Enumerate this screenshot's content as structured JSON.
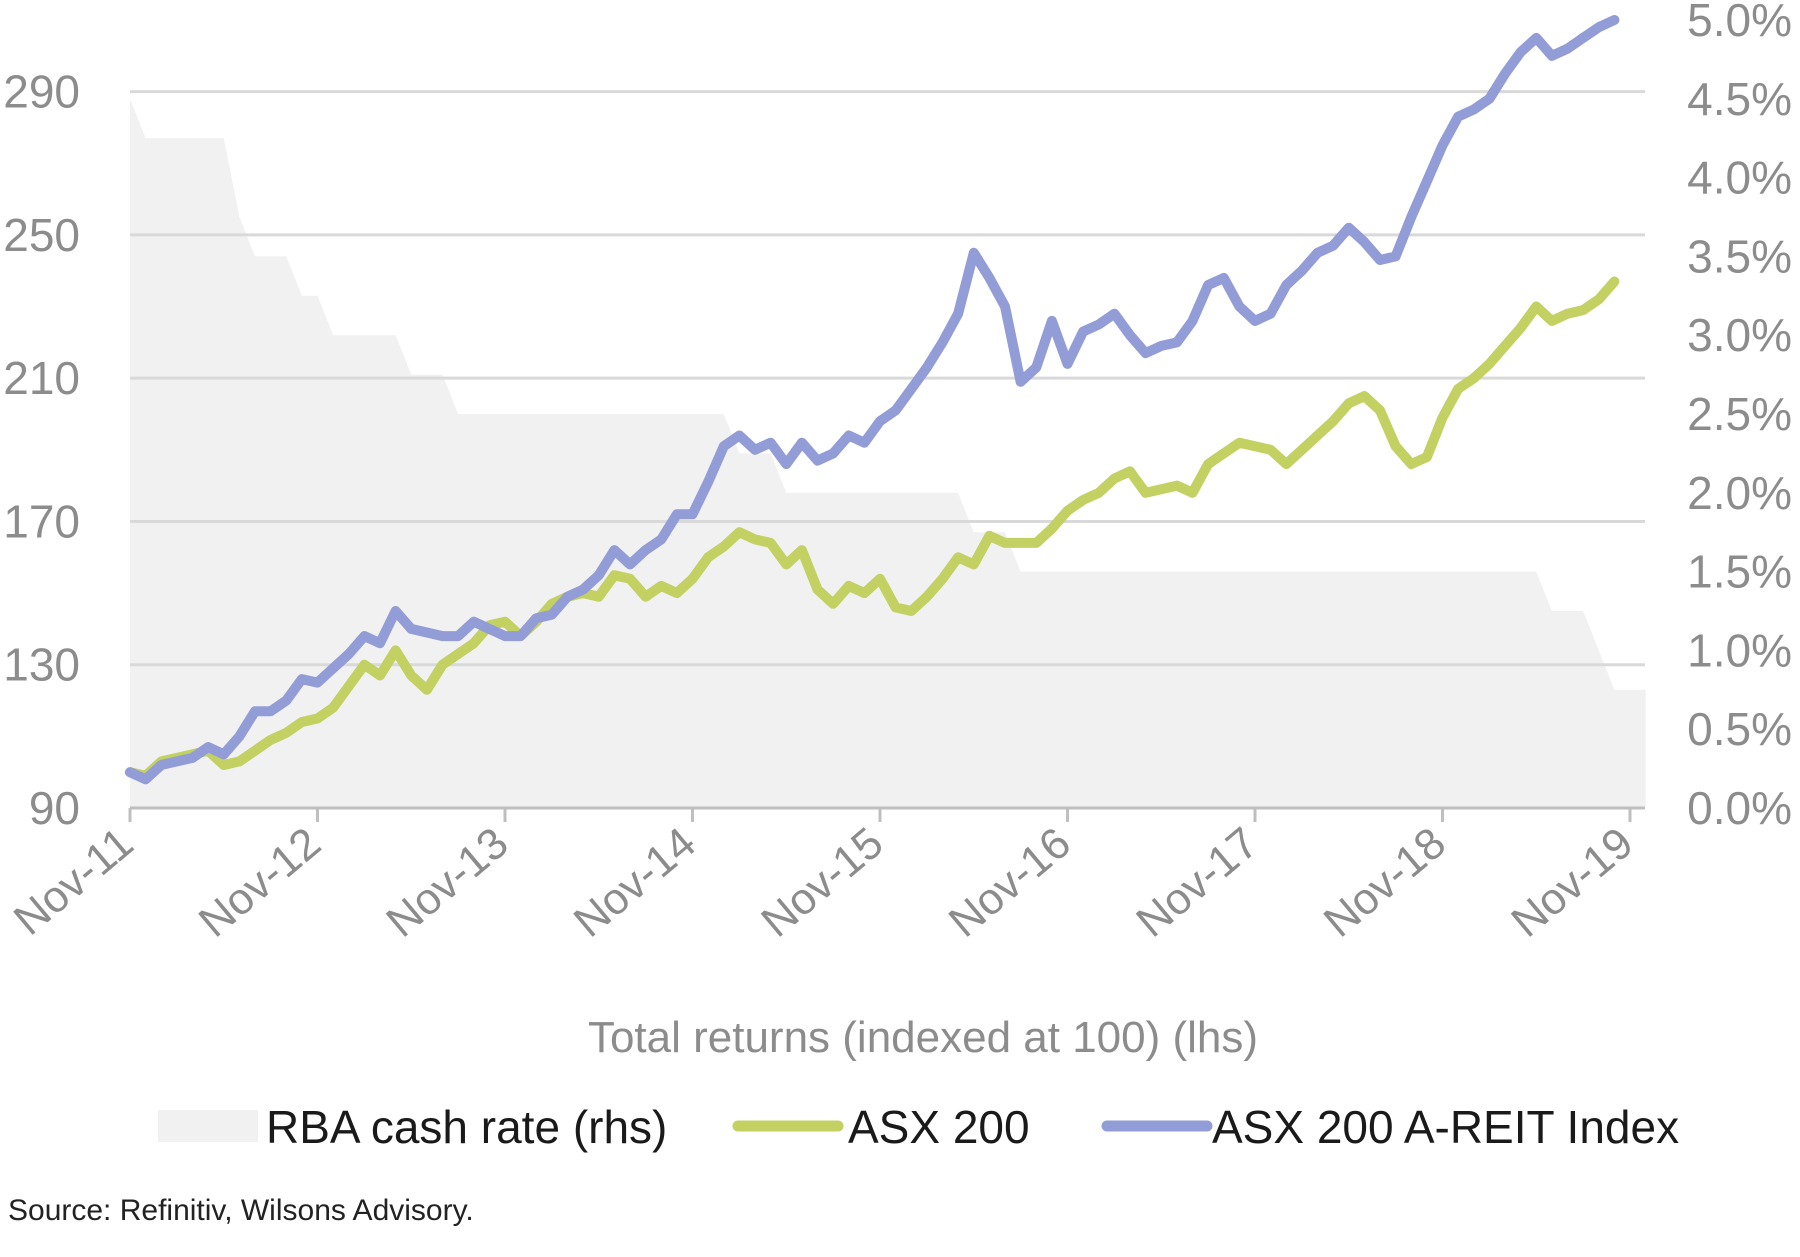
{
  "chart_data": {
    "type": "line",
    "xlabel": "Total returns (indexed at 100) (lhs)",
    "x_ticks": [
      "Nov-11",
      "Nov-12",
      "Nov-13",
      "Nov-14",
      "Nov-15",
      "Nov-16",
      "Nov-17",
      "Nov-18",
      "Nov-19"
    ],
    "y_left": {
      "lim": [
        90,
        310
      ],
      "ticks": [
        "90",
        "130",
        "170",
        "210",
        "250",
        "290"
      ]
    },
    "y_right": {
      "lim": [
        0.0,
        5.0
      ],
      "ticks": [
        "0.0%",
        "0.5%",
        "1.0%",
        "1.5%",
        "2.0%",
        "2.5%",
        "3.0%",
        "3.5%",
        "4.0%",
        "4.5%",
        "5.0%"
      ]
    },
    "grid": true,
    "legend_position": "bottom",
    "colors": {
      "cash_rate": "#f1f1f1",
      "asx200": "#c3d062",
      "areit": "#929cd6",
      "grid": "#d9d9d9",
      "axis": "#bfbfbf"
    },
    "series": [
      {
        "name": "RBA cash rate (rhs)",
        "type": "area",
        "axis": "right",
        "points": [
          [
            "2011-11",
            4.5
          ],
          [
            "2011-12",
            4.25
          ],
          [
            "2012-05",
            4.25
          ],
          [
            "2012-06",
            3.75
          ],
          [
            "2012-07",
            3.5
          ],
          [
            "2012-09",
            3.5
          ],
          [
            "2012-10",
            3.25
          ],
          [
            "2012-11",
            3.25
          ],
          [
            "2012-12",
            3.0
          ],
          [
            "2013-04",
            3.0
          ],
          [
            "2013-05",
            2.75
          ],
          [
            "2013-07",
            2.75
          ],
          [
            "2013-08",
            2.5
          ],
          [
            "2015-01",
            2.5
          ],
          [
            "2015-02",
            2.25
          ],
          [
            "2015-04",
            2.25
          ],
          [
            "2015-05",
            2.0
          ],
          [
            "2016-04",
            2.0
          ],
          [
            "2016-05",
            1.75
          ],
          [
            "2016-07",
            1.75
          ],
          [
            "2016-08",
            1.5
          ],
          [
            "2019-05",
            1.5
          ],
          [
            "2019-06",
            1.25
          ],
          [
            "2019-08",
            1.25
          ],
          [
            "2019-09",
            1.0
          ],
          [
            "2019-10",
            0.75
          ],
          [
            "2019-12",
            0.75
          ]
        ]
      },
      {
        "name": "ASX 200",
        "type": "line",
        "axis": "left",
        "points": [
          [
            "2011-11",
            100
          ],
          [
            "2011-12",
            99
          ],
          [
            "2012-01",
            103
          ],
          [
            "2012-02",
            104
          ],
          [
            "2012-03",
            105
          ],
          [
            "2012-04",
            106
          ],
          [
            "2012-05",
            102
          ],
          [
            "2012-06",
            103
          ],
          [
            "2012-07",
            106
          ],
          [
            "2012-08",
            109
          ],
          [
            "2012-09",
            111
          ],
          [
            "2012-10",
            114
          ],
          [
            "2012-11",
            115
          ],
          [
            "2012-12",
            118
          ],
          [
            "2013-01",
            124
          ],
          [
            "2013-02",
            130
          ],
          [
            "2013-03",
            127
          ],
          [
            "2013-04",
            134
          ],
          [
            "2013-05",
            127
          ],
          [
            "2013-06",
            123
          ],
          [
            "2013-07",
            130
          ],
          [
            "2013-08",
            133
          ],
          [
            "2013-09",
            136
          ],
          [
            "2013-10",
            141
          ],
          [
            "2013-11",
            142
          ],
          [
            "2013-12",
            138
          ],
          [
            "2014-01",
            142
          ],
          [
            "2014-02",
            147
          ],
          [
            "2014-03",
            149
          ],
          [
            "2014-04",
            150
          ],
          [
            "2014-05",
            149
          ],
          [
            "2014-06",
            155
          ],
          [
            "2014-07",
            154
          ],
          [
            "2014-08",
            149
          ],
          [
            "2014-09",
            152
          ],
          [
            "2014-10",
            150
          ],
          [
            "2014-11",
            154
          ],
          [
            "2014-12",
            160
          ],
          [
            "2015-01",
            163
          ],
          [
            "2015-02",
            167
          ],
          [
            "2015-03",
            165
          ],
          [
            "2015-04",
            164
          ],
          [
            "2015-05",
            158
          ],
          [
            "2015-06",
            162
          ],
          [
            "2015-07",
            151
          ],
          [
            "2015-08",
            147
          ],
          [
            "2015-09",
            152
          ],
          [
            "2015-10",
            150
          ],
          [
            "2015-11",
            154
          ],
          [
            "2015-12",
            146
          ],
          [
            "2016-01",
            145
          ],
          [
            "2016-02",
            149
          ],
          [
            "2016-03",
            154
          ],
          [
            "2016-04",
            160
          ],
          [
            "2016-05",
            158
          ],
          [
            "2016-06",
            166
          ],
          [
            "2016-07",
            164
          ],
          [
            "2016-08",
            164
          ],
          [
            "2016-09",
            164
          ],
          [
            "2016-10",
            168
          ],
          [
            "2016-11",
            173
          ],
          [
            "2016-12",
            176
          ],
          [
            "2017-01",
            178
          ],
          [
            "2017-02",
            182
          ],
          [
            "2017-03",
            184
          ],
          [
            "2017-04",
            178
          ],
          [
            "2017-05",
            179
          ],
          [
            "2017-06",
            180
          ],
          [
            "2017-07",
            178
          ],
          [
            "2017-08",
            186
          ],
          [
            "2017-09",
            189
          ],
          [
            "2017-10",
            192
          ],
          [
            "2017-11",
            191
          ],
          [
            "2017-12",
            190
          ],
          [
            "2018-01",
            186
          ],
          [
            "2018-02",
            190
          ],
          [
            "2018-03",
            194
          ],
          [
            "2018-04",
            198
          ],
          [
            "2018-05",
            203
          ],
          [
            "2018-06",
            205
          ],
          [
            "2018-07",
            201
          ],
          [
            "2018-08",
            191
          ],
          [
            "2018-09",
            186
          ],
          [
            "2018-10",
            188
          ],
          [
            "2018-11",
            199
          ],
          [
            "2018-12",
            207
          ],
          [
            "2019-01",
            210
          ],
          [
            "2019-02",
            214
          ],
          [
            "2019-03",
            219
          ],
          [
            "2019-04",
            224
          ],
          [
            "2019-05",
            230
          ],
          [
            "2019-06",
            226
          ],
          [
            "2019-07",
            228
          ],
          [
            "2019-08",
            229
          ],
          [
            "2019-09",
            232
          ],
          [
            "2019-10",
            237
          ]
        ]
      },
      {
        "name": "ASX 200 A-REIT Index",
        "type": "line",
        "axis": "left",
        "points": [
          [
            "2011-11",
            100
          ],
          [
            "2011-12",
            98
          ],
          [
            "2012-01",
            102
          ],
          [
            "2012-02",
            103
          ],
          [
            "2012-03",
            104
          ],
          [
            "2012-04",
            107
          ],
          [
            "2012-05",
            105
          ],
          [
            "2012-06",
            110
          ],
          [
            "2012-07",
            117
          ],
          [
            "2012-08",
            117
          ],
          [
            "2012-09",
            120
          ],
          [
            "2012-10",
            126
          ],
          [
            "2012-11",
            125
          ],
          [
            "2012-12",
            129
          ],
          [
            "2013-01",
            133
          ],
          [
            "2013-02",
            138
          ],
          [
            "2013-03",
            136
          ],
          [
            "2013-04",
            145
          ],
          [
            "2013-05",
            140
          ],
          [
            "2013-06",
            139
          ],
          [
            "2013-07",
            138
          ],
          [
            "2013-08",
            138
          ],
          [
            "2013-09",
            142
          ],
          [
            "2013-10",
            140
          ],
          [
            "2013-11",
            138
          ],
          [
            "2013-12",
            138
          ],
          [
            "2014-01",
            143
          ],
          [
            "2014-02",
            144
          ],
          [
            "2014-03",
            149
          ],
          [
            "2014-04",
            151
          ],
          [
            "2014-05",
            155
          ],
          [
            "2014-06",
            162
          ],
          [
            "2014-07",
            158
          ],
          [
            "2014-08",
            162
          ],
          [
            "2014-09",
            165
          ],
          [
            "2014-10",
            172
          ],
          [
            "2014-11",
            172
          ],
          [
            "2014-12",
            181
          ],
          [
            "2015-01",
            191
          ],
          [
            "2015-02",
            194
          ],
          [
            "2015-03",
            190
          ],
          [
            "2015-04",
            192
          ],
          [
            "2015-05",
            186
          ],
          [
            "2015-06",
            192
          ],
          [
            "2015-07",
            187
          ],
          [
            "2015-08",
            189
          ],
          [
            "2015-09",
            194
          ],
          [
            "2015-10",
            192
          ],
          [
            "2015-11",
            198
          ],
          [
            "2015-12",
            201
          ],
          [
            "2016-01",
            207
          ],
          [
            "2016-02",
            213
          ],
          [
            "2016-03",
            220
          ],
          [
            "2016-04",
            228
          ],
          [
            "2016-05",
            245
          ],
          [
            "2016-06",
            238
          ],
          [
            "2016-07",
            230
          ],
          [
            "2016-08",
            209
          ],
          [
            "2016-09",
            213
          ],
          [
            "2016-10",
            226
          ],
          [
            "2016-11",
            214
          ],
          [
            "2016-12",
            223
          ],
          [
            "2017-01",
            225
          ],
          [
            "2017-02",
            228
          ],
          [
            "2017-03",
            222
          ],
          [
            "2017-04",
            217
          ],
          [
            "2017-05",
            219
          ],
          [
            "2017-06",
            220
          ],
          [
            "2017-07",
            226
          ],
          [
            "2017-08",
            236
          ],
          [
            "2017-09",
            238
          ],
          [
            "2017-10",
            230
          ],
          [
            "2017-11",
            226
          ],
          [
            "2017-12",
            228
          ],
          [
            "2018-01",
            236
          ],
          [
            "2018-02",
            240
          ],
          [
            "2018-03",
            245
          ],
          [
            "2018-04",
            247
          ],
          [
            "2018-05",
            252
          ],
          [
            "2018-06",
            248
          ],
          [
            "2018-07",
            243
          ],
          [
            "2018-08",
            244
          ],
          [
            "2018-09",
            255
          ],
          [
            "2018-10",
            265
          ],
          [
            "2018-11",
            275
          ],
          [
            "2018-12",
            283
          ],
          [
            "2019-01",
            285
          ],
          [
            "2019-02",
            288
          ],
          [
            "2019-03",
            295
          ],
          [
            "2019-04",
            301
          ],
          [
            "2019-05",
            305
          ],
          [
            "2019-06",
            300
          ],
          [
            "2019-07",
            302
          ],
          [
            "2019-08",
            305
          ],
          [
            "2019-09",
            308
          ],
          [
            "2019-10",
            310
          ]
        ]
      }
    ],
    "legend": [
      "RBA cash rate (rhs)",
      "ASX 200",
      "ASX 200 A-REIT Index"
    ]
  },
  "source": "Source: Refinitiv, Wilsons Advisory."
}
